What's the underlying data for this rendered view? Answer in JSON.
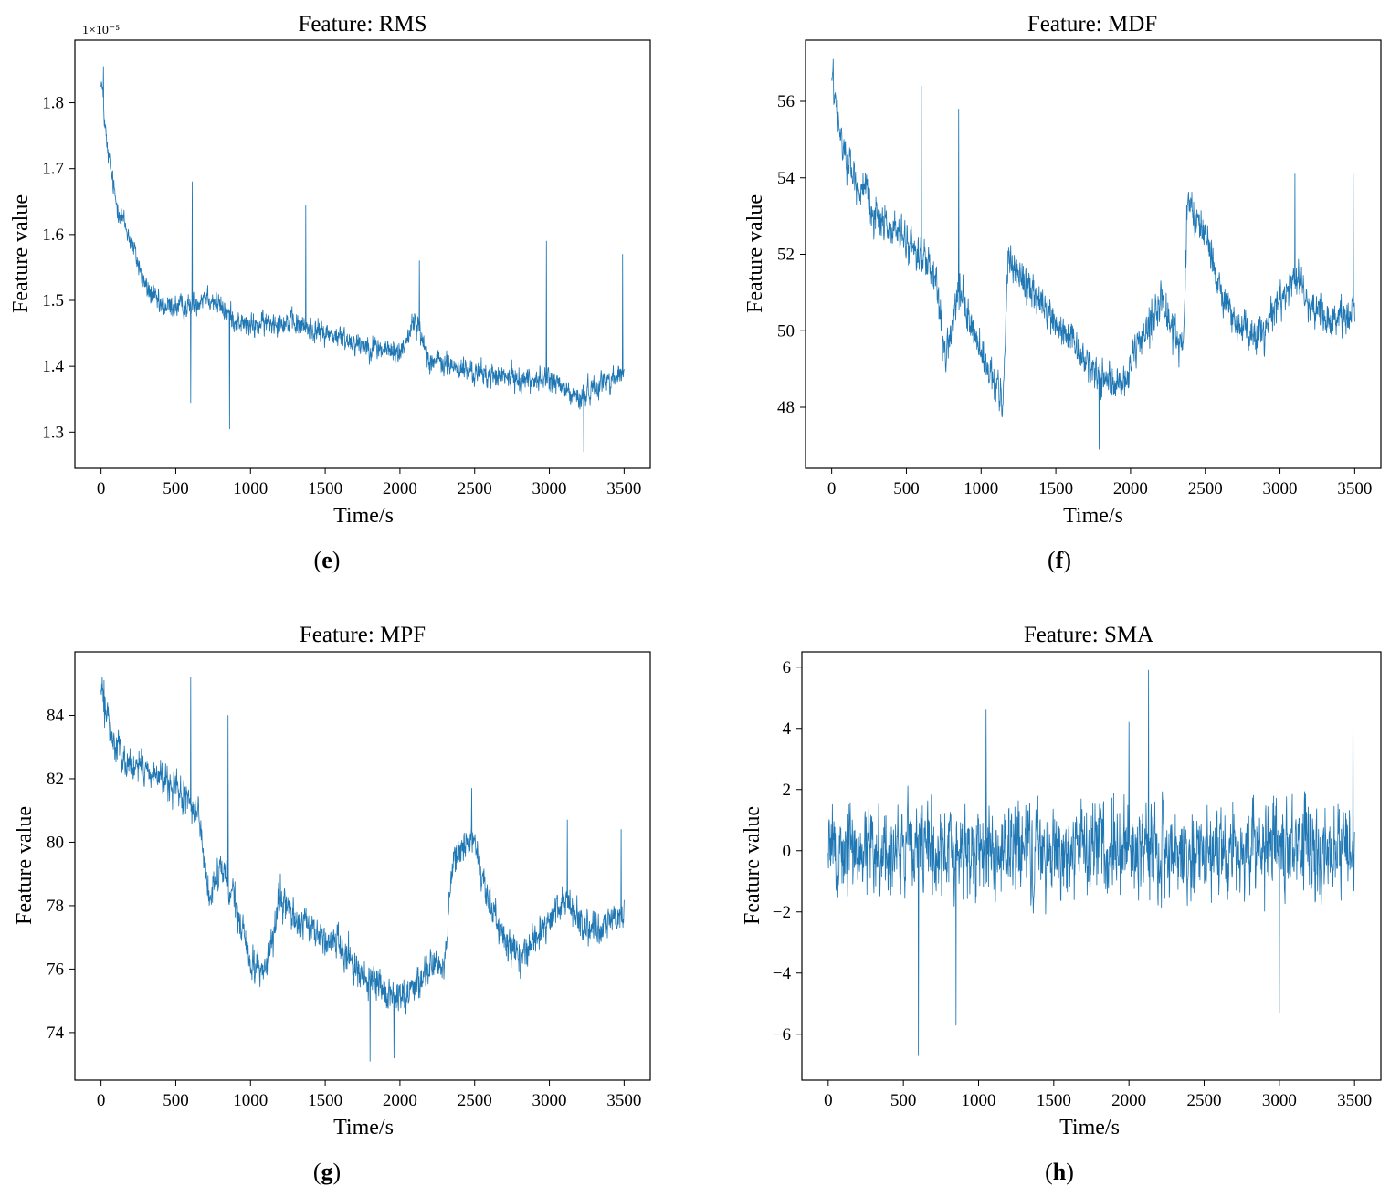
{
  "figure": {
    "panels": [
      {
        "id": "e",
        "panel_label_letter": "e"
      },
      {
        "id": "f",
        "panel_label_letter": "f"
      },
      {
        "id": "g",
        "panel_label_letter": "g"
      },
      {
        "id": "h",
        "panel_label_letter": "h"
      }
    ]
  },
  "colors": {
    "line": "#1f77b4",
    "axes": "#000000",
    "background": "#ffffff"
  },
  "chart_data": [
    {
      "id": "e",
      "type": "line",
      "title": "Feature: RMS",
      "xlabel": "Time/s",
      "ylabel": "Feature value",
      "offset_text": "1×10⁻⁵",
      "xlim": [
        -175,
        3675
      ],
      "ylim": [
        1.245,
        1.895
      ],
      "xticks": [
        0,
        500,
        1000,
        1500,
        2000,
        2500,
        3000,
        3500
      ],
      "yticks": [
        1.3,
        1.4,
        1.5,
        1.6,
        1.7,
        1.8
      ],
      "ytick_decimals": 1,
      "trend": [
        [
          0,
          1.84
        ],
        [
          40,
          1.73
        ],
        [
          100,
          1.65
        ],
        [
          200,
          1.59
        ],
        [
          300,
          1.52
        ],
        [
          400,
          1.49
        ],
        [
          500,
          1.49
        ],
        [
          600,
          1.49
        ],
        [
          700,
          1.51
        ],
        [
          800,
          1.49
        ],
        [
          900,
          1.47
        ],
        [
          1000,
          1.46
        ],
        [
          1200,
          1.47
        ],
        [
          1500,
          1.45
        ],
        [
          1800,
          1.43
        ],
        [
          2000,
          1.42
        ],
        [
          2100,
          1.47
        ],
        [
          2200,
          1.41
        ],
        [
          2500,
          1.39
        ],
        [
          2800,
          1.38
        ],
        [
          3000,
          1.38
        ],
        [
          3200,
          1.35
        ],
        [
          3300,
          1.37
        ],
        [
          3500,
          1.39
        ]
      ],
      "noise_amplitude": 0.032,
      "spikes": [
        [
          15,
          1.855
        ],
        [
          610,
          1.68
        ],
        [
          860,
          1.305
        ],
        [
          1370,
          1.645
        ],
        [
          2130,
          1.56
        ],
        [
          2980,
          1.59
        ],
        [
          3490,
          1.57
        ],
        [
          3230,
          1.27
        ],
        [
          600,
          1.345
        ]
      ],
      "series_name": "RMS"
    },
    {
      "id": "f",
      "type": "line",
      "title": "Feature: MDF",
      "xlabel": "Time/s",
      "ylabel": "Feature value",
      "xlim": [
        -175,
        3675
      ],
      "ylim": [
        46.4,
        57.6
      ],
      "xticks": [
        0,
        500,
        1000,
        1500,
        2000,
        2500,
        3000,
        3500
      ],
      "yticks": [
        48,
        50,
        52,
        54,
        56
      ],
      "ytick_decimals": 0,
      "trend": [
        [
          0,
          56.6
        ],
        [
          60,
          55.0
        ],
        [
          150,
          54.0
        ],
        [
          300,
          53.0
        ],
        [
          450,
          52.5
        ],
        [
          600,
          52.0
        ],
        [
          700,
          51.2
        ],
        [
          760,
          49.2
        ],
        [
          850,
          51.0
        ],
        [
          950,
          50.0
        ],
        [
          1050,
          48.8
        ],
        [
          1150,
          48.2
        ],
        [
          1180,
          52.0
        ],
        [
          1300,
          51.2
        ],
        [
          1500,
          50.2
        ],
        [
          1700,
          49.2
        ],
        [
          1800,
          48.8
        ],
        [
          1950,
          48.5
        ],
        [
          2100,
          50.0
        ],
        [
          2200,
          50.8
        ],
        [
          2350,
          49.5
        ],
        [
          2380,
          53.2
        ],
        [
          2500,
          52.6
        ],
        [
          2600,
          51.0
        ],
        [
          2700,
          50.2
        ],
        [
          2850,
          49.8
        ],
        [
          3000,
          50.8
        ],
        [
          3100,
          51.5
        ],
        [
          3200,
          50.6
        ],
        [
          3350,
          50.2
        ],
        [
          3500,
          50.6
        ]
      ],
      "noise_amplitude": 0.85,
      "spikes": [
        [
          10,
          57.1
        ],
        [
          600,
          56.4
        ],
        [
          850,
          55.8
        ],
        [
          1790,
          46.9
        ],
        [
          3100,
          54.1
        ],
        [
          3490,
          54.1
        ]
      ],
      "series_name": "MDF"
    },
    {
      "id": "g",
      "type": "line",
      "title": "Feature: MPF",
      "xlabel": "Time/s",
      "ylabel": "Feature value",
      "xlim": [
        -175,
        3675
      ],
      "ylim": [
        72.5,
        86.0
      ],
      "xticks": [
        0,
        500,
        1000,
        1500,
        2000,
        2500,
        3000,
        3500
      ],
      "yticks": [
        74,
        76,
        78,
        80,
        82,
        84
      ],
      "ytick_decimals": 0,
      "trend": [
        [
          0,
          84.8
        ],
        [
          80,
          83.2
        ],
        [
          200,
          82.4
        ],
        [
          350,
          82.2
        ],
        [
          500,
          81.6
        ],
        [
          650,
          81.0
        ],
        [
          720,
          78.2
        ],
        [
          800,
          79.2
        ],
        [
          900,
          78.0
        ],
        [
          1000,
          76.2
        ],
        [
          1100,
          76.0
        ],
        [
          1150,
          77.0
        ],
        [
          1200,
          78.2
        ],
        [
          1300,
          77.6
        ],
        [
          1400,
          77.2
        ],
        [
          1600,
          76.8
        ],
        [
          1750,
          75.8
        ],
        [
          1900,
          75.2
        ],
        [
          2050,
          75.2
        ],
        [
          2200,
          76.2
        ],
        [
          2300,
          76.0
        ],
        [
          2350,
          79.6
        ],
        [
          2500,
          80.0
        ],
        [
          2600,
          78.0
        ],
        [
          2700,
          77.0
        ],
        [
          2800,
          76.4
        ],
        [
          2950,
          77.2
        ],
        [
          3100,
          78.2
        ],
        [
          3250,
          77.2
        ],
        [
          3400,
          77.4
        ],
        [
          3500,
          77.8
        ]
      ],
      "noise_amplitude": 0.95,
      "spikes": [
        [
          20,
          85.1
        ],
        [
          600,
          85.2
        ],
        [
          850,
          84.0
        ],
        [
          1800,
          73.1
        ],
        [
          1960,
          73.2
        ],
        [
          2480,
          81.7
        ],
        [
          3120,
          80.7
        ],
        [
          3480,
          80.4
        ]
      ],
      "series_name": "MPF"
    },
    {
      "id": "h",
      "type": "line",
      "title": "Feature: SMA",
      "xlabel": "Time/s",
      "ylabel": "Feature value",
      "xlim": [
        -175,
        3675
      ],
      "ylim": [
        -7.5,
        6.5
      ],
      "xticks": [
        0,
        500,
        1000,
        1500,
        2000,
        2500,
        3000,
        3500
      ],
      "yticks": [
        -6,
        -4,
        -2,
        0,
        2,
        4,
        6
      ],
      "ytick_decimals": 0,
      "trend": [
        [
          0,
          0
        ],
        [
          3500,
          0
        ]
      ],
      "noise_amplitude": 2.6,
      "spikes": [
        [
          600,
          -6.7
        ],
        [
          1050,
          4.6
        ],
        [
          2130,
          5.9
        ],
        [
          3490,
          5.3
        ],
        [
          3000,
          -5.3
        ],
        [
          850,
          -5.7
        ],
        [
          2000,
          4.2
        ]
      ],
      "series_name": "SMA"
    }
  ]
}
